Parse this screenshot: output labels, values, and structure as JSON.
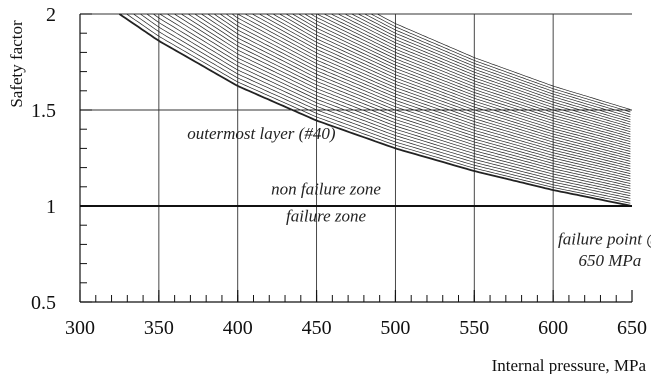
{
  "chart_data": {
    "type": "line",
    "xlabel": "Internal pressure, MPa",
    "ylabel": "Safety factor",
    "xlim": [
      300,
      650
    ],
    "ylim": [
      0.5,
      2
    ],
    "x_ticks": [
      "300",
      "350",
      "400",
      "450",
      "500",
      "550",
      "600",
      "650"
    ],
    "y_ticks": [
      "0.5",
      "1",
      "1.5",
      "2"
    ],
    "x_minor_step": 10,
    "y_minor_step": 0.1,
    "grid": "major",
    "series": [
      {
        "name": "outermost layer (#40)",
        "x": [
          325,
          350,
          400,
          450,
          500,
          550,
          600,
          650
        ],
        "y": [
          2.0,
          1.86,
          1.625,
          1.445,
          1.3,
          1.182,
          1.083,
          1.0
        ]
      }
    ],
    "series_layer_family": {
      "layers": 40,
      "reference_layer": 40,
      "x": [
        325,
        350,
        400,
        450,
        500,
        550,
        600,
        650
      ],
      "y_at_650_range": [
        1.0,
        1.5
      ]
    },
    "reference_line": {
      "y": 1,
      "label_above": "non failure zone",
      "label_below": "failure zone"
    },
    "annotations": [
      {
        "text": "outermost layer (#40)",
        "x": 415,
        "y": 1.38
      },
      {
        "text": "non failure zone",
        "x": 456,
        "y": 1.09
      },
      {
        "text": "failure zone",
        "x": 456,
        "y": 0.95
      },
      {
        "text": "failure point @",
        "x": 636,
        "y": 0.83
      },
      {
        "text": "650 MPa",
        "x": 636,
        "y": 0.72
      }
    ]
  }
}
